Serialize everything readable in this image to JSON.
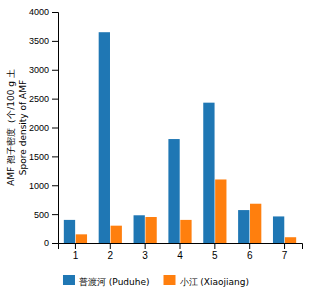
{
  "chart_data": {
    "type": "bar",
    "ylabel": [
      "AMF 孢子密度（个/100 g 土",
      "Spore density of AMF"
    ],
    "categories": [
      "1",
      "2",
      "3",
      "4",
      "5",
      "6",
      "7"
    ],
    "series": [
      {
        "name": "普渡河 (Puduhe)",
        "values": [
          400,
          3650,
          480,
          1800,
          2430,
          570,
          460
        ]
      },
      {
        "name": "小江 (Xiaojiang)",
        "values": [
          150,
          300,
          450,
          400,
          1100,
          680,
          100
        ]
      }
    ],
    "ylim": [
      0,
      4000
    ],
    "yticks": [
      0,
      500,
      1000,
      1500,
      2000,
      2500,
      3000,
      3500,
      4000
    ],
    "grid": false,
    "legend": "bottom"
  }
}
